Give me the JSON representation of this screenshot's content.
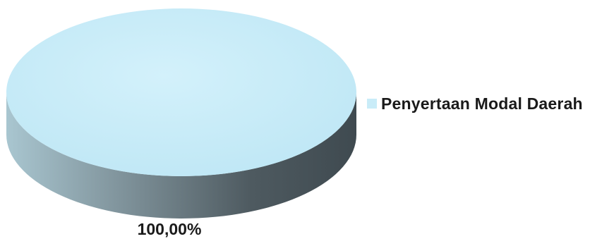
{
  "chart_data": {
    "type": "pie",
    "style": "3d",
    "slices": [
      {
        "label": "Penyertaan Modal Daerah",
        "value": 100.0,
        "value_label": "100,00%",
        "color": "#c9ecf8",
        "side_color": "#5b6a72"
      }
    ],
    "legend": {
      "position": "right"
    }
  },
  "legend": {
    "items": [
      {
        "label": "Penyertaan Modal Daerah",
        "color": "#c9ecf8"
      }
    ]
  },
  "labels": {
    "slice_0": "100,00%"
  }
}
